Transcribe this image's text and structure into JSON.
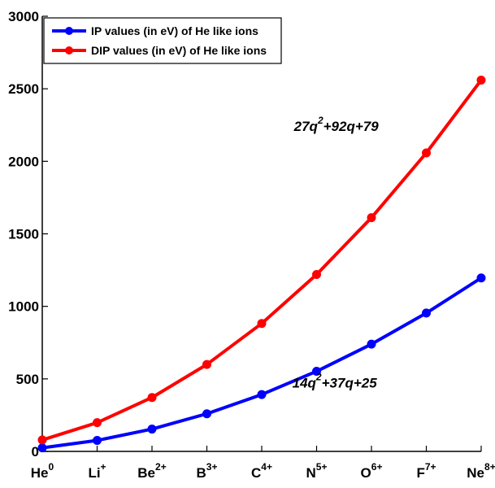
{
  "chart_data": {
    "type": "line",
    "categories": [
      {
        "base": "He",
        "sup": "0"
      },
      {
        "base": "Li",
        "sup": "+"
      },
      {
        "base": "Be",
        "sup": "2+"
      },
      {
        "base": "B",
        "sup": "3+"
      },
      {
        "base": "C",
        "sup": "4+"
      },
      {
        "base": "N",
        "sup": "5+"
      },
      {
        "base": "O",
        "sup": "6+"
      },
      {
        "base": "F",
        "sup": "7+"
      },
      {
        "base": "Ne",
        "sup": "8+"
      }
    ],
    "ylim": [
      0,
      3000
    ],
    "yticks": [
      "0",
      "500",
      "1000",
      "1500",
      "2000",
      "2500",
      "3000"
    ],
    "grid": false,
    "legend_position": "top-left",
    "series": [
      {
        "name": "IP values (in eV) of He like ions",
        "color": "#0000ff",
        "values": [
          24.6,
          75.6,
          153.9,
          259.4,
          392.1,
          552.1,
          739.3,
          953.9,
          1195.8
        ]
      },
      {
        "name": "DIP values (in eV) of He like ions",
        "color": "#ff0000",
        "values": [
          79.0,
          198.1,
          371.6,
          599.6,
          882.1,
          1219.4,
          1611.2,
          2058.0,
          2560.0
        ]
      }
    ],
    "annotations": [
      {
        "base": "27q",
        "sup": "2",
        "rest": "+92q+79",
        "series": "DIP",
        "anchor_x": 5.18,
        "anchor_y": 2210
      },
      {
        "base": "14q",
        "sup": "2",
        "rest": "+37q+25",
        "series": "IP",
        "anchor_x": 5.15,
        "anchor_y": 440
      }
    ]
  }
}
